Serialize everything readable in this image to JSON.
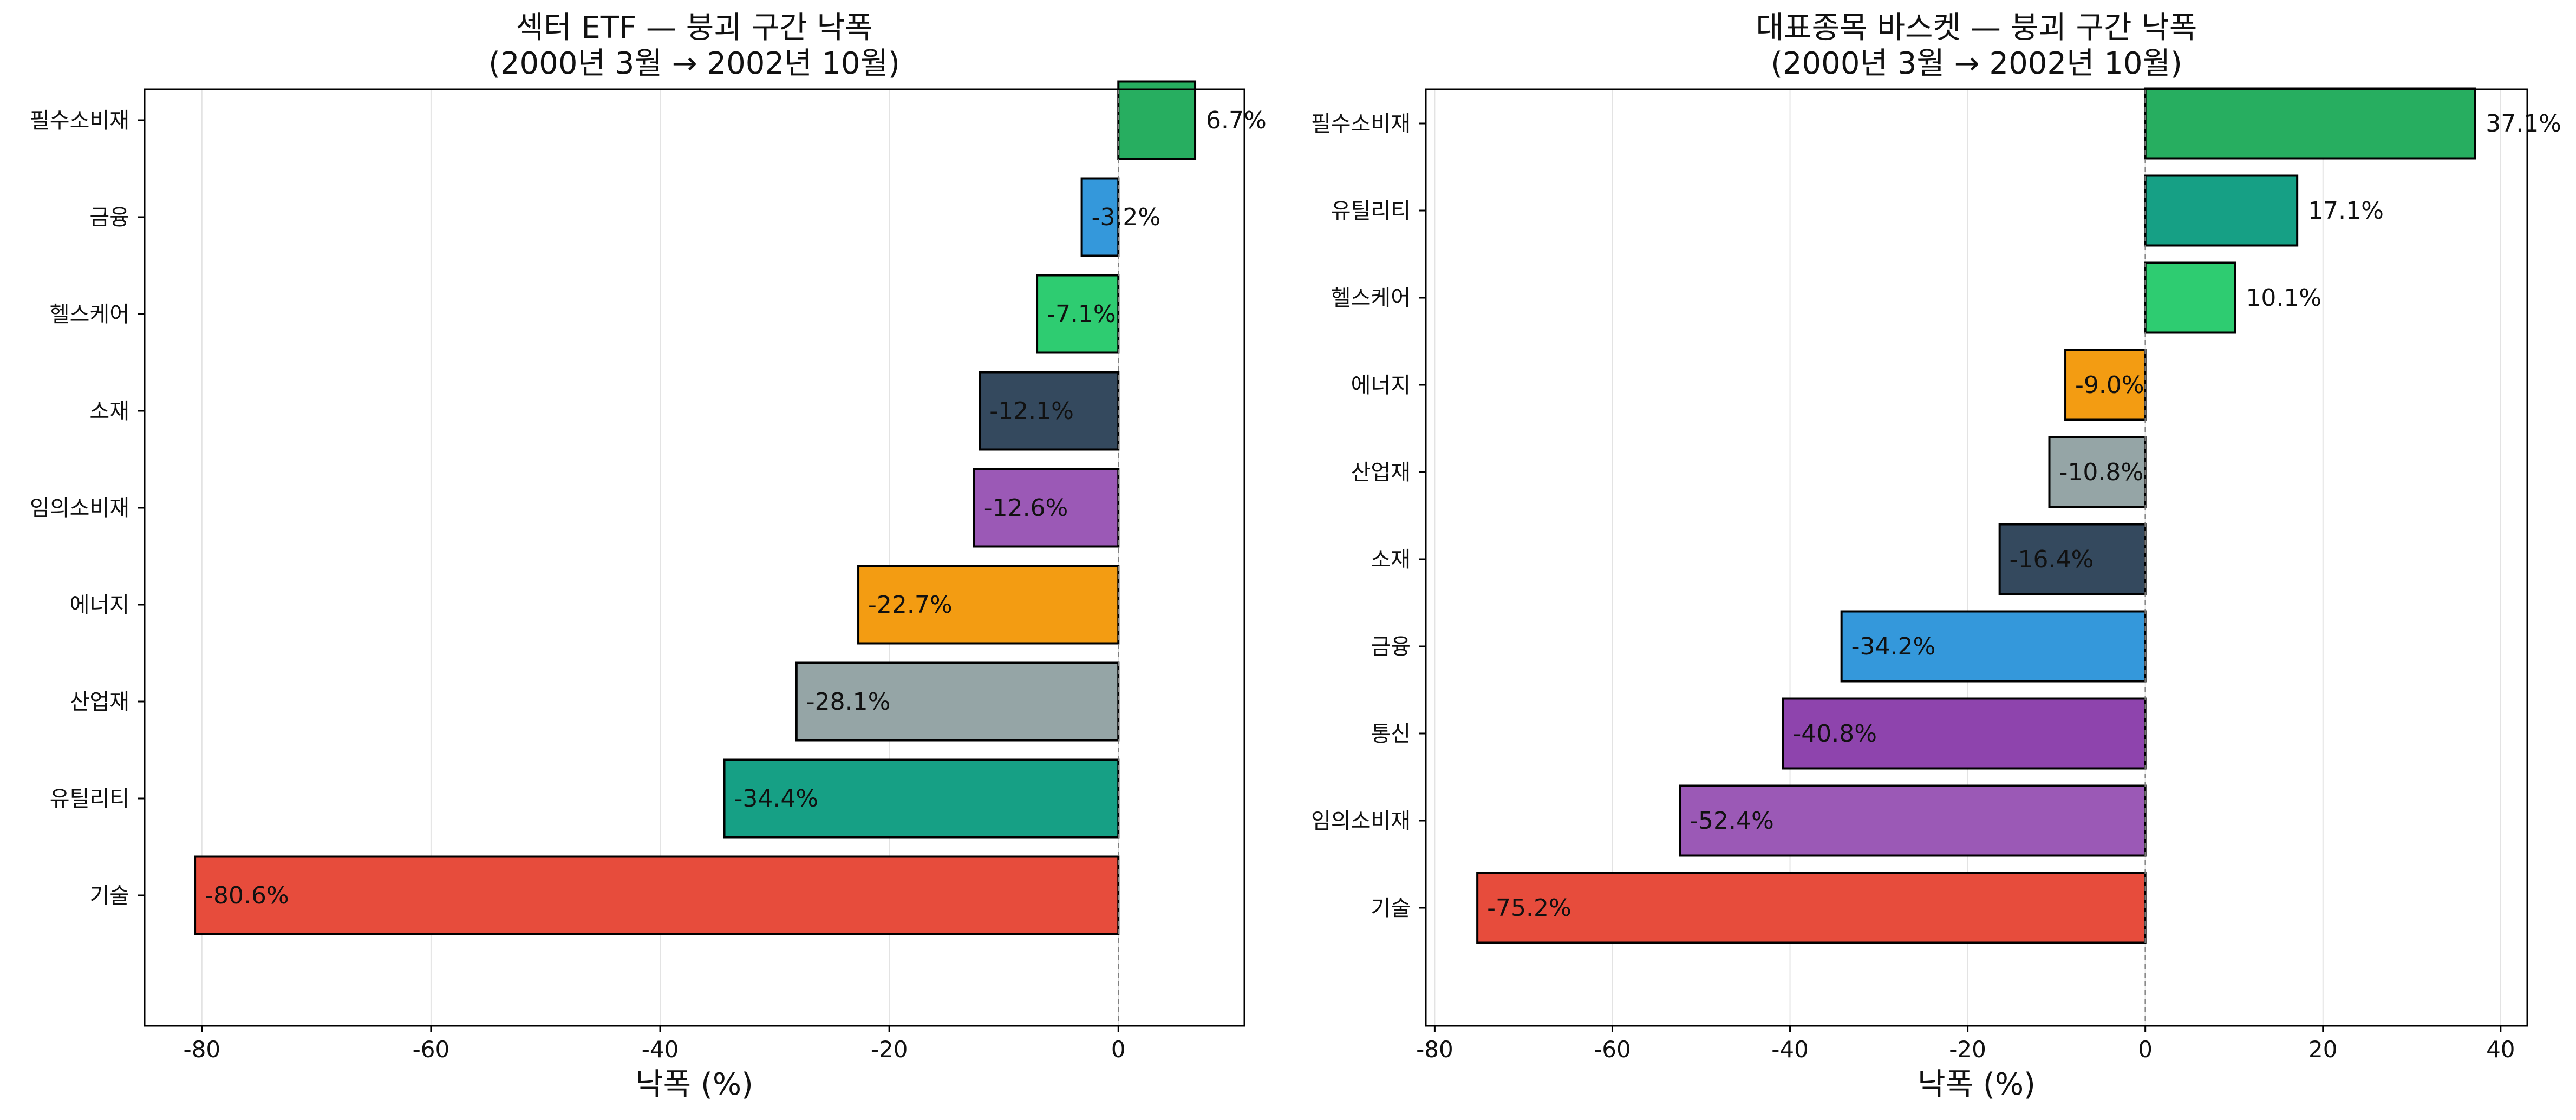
{
  "chart_data": [
    {
      "type": "bar",
      "orientation": "horizontal",
      "title": "섹터 ETF — 붕괴 구간 낙폭",
      "subtitle": "(2000년 3월 → 2002년 10월)",
      "xlabel": "낙폭 (%)",
      "ylabel": "",
      "xlim": [
        -85,
        11
      ],
      "xticks": [
        -80,
        -60,
        -40,
        -20,
        0
      ],
      "grid": "vertical",
      "value_suffix": "%",
      "categories": [
        "필수소비재",
        "금융",
        "헬스케어",
        "소재",
        "임의소비재",
        "에너지",
        "산업재",
        "유틸리티",
        "기술"
      ],
      "values": [
        6.7,
        -3.2,
        -7.1,
        -12.1,
        -12.6,
        -22.7,
        -28.1,
        -34.4,
        -80.6
      ],
      "labels": [
        "6.7%",
        "-3.2%",
        "-7.1%",
        "-12.1%",
        "-12.6%",
        "-22.7%",
        "-28.1%",
        "-34.4%",
        "-80.6%"
      ],
      "colors": [
        "#27ae60",
        "#3498db",
        "#2ecc71",
        "#34495e",
        "#9b59b6",
        "#f39c12",
        "#95a5a6",
        "#16a085",
        "#e74c3c"
      ]
    },
    {
      "type": "bar",
      "orientation": "horizontal",
      "title": "대표종목 바스켓 — 붕괴 구간 낙폭",
      "subtitle": "(2000년 3월 → 2002년 10월)",
      "xlabel": "낙폭 (%)",
      "ylabel": "",
      "xlim": [
        -81,
        43
      ],
      "xticks": [
        -80,
        -60,
        -40,
        -20,
        0,
        20,
        40
      ],
      "grid": "vertical",
      "value_suffix": "%",
      "categories": [
        "필수소비재",
        "유틸리티",
        "헬스케어",
        "에너지",
        "산업재",
        "소재",
        "금융",
        "통신",
        "임의소비재",
        "기술"
      ],
      "values": [
        37.1,
        17.1,
        10.1,
        -9.0,
        -10.8,
        -16.4,
        -34.2,
        -40.8,
        -52.4,
        -75.2
      ],
      "labels": [
        "37.1%",
        "17.1%",
        "10.1%",
        "-9.0%",
        "-10.8%",
        "-16.4%",
        "-34.2%",
        "-40.8%",
        "-52.4%",
        "-75.2%"
      ],
      "colors": [
        "#27ae60",
        "#16a085",
        "#2ecc71",
        "#f39c12",
        "#95a5a6",
        "#34495e",
        "#3498db",
        "#8e44ad",
        "#9b59b6",
        "#e74c3c"
      ]
    }
  ]
}
